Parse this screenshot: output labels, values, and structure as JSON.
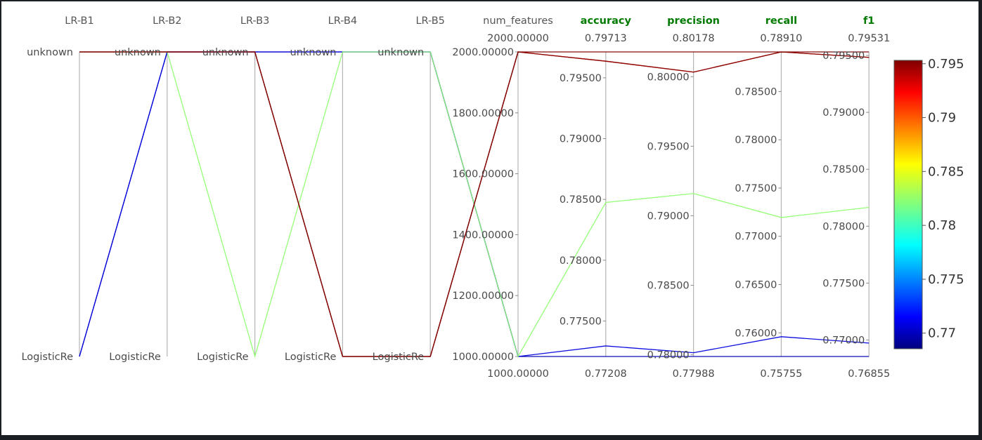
{
  "chart_data": {
    "type": "parallel-coordinates",
    "dimensions": [
      {
        "name": "LR-B1",
        "kind": "categorical",
        "categories": [
          "LogisticRe",
          "unknown"
        ]
      },
      {
        "name": "LR-B2",
        "kind": "categorical",
        "categories": [
          "LogisticRe",
          "unknown"
        ]
      },
      {
        "name": "LR-B3",
        "kind": "categorical",
        "categories": [
          "LogisticRe",
          "unknown"
        ]
      },
      {
        "name": "LR-B4",
        "kind": "categorical",
        "categories": [
          "LogisticRe",
          "unknown"
        ]
      },
      {
        "name": "LR-B5",
        "kind": "categorical",
        "categories": [
          "LogisticRe",
          "unknown"
        ]
      },
      {
        "name": "num_features",
        "kind": "numeric",
        "min": 1000,
        "max": 2000,
        "min_label": "1000.00000",
        "max_label": "2000.00000",
        "ticks": [
          "1000.00000",
          "1200.00000",
          "1400.00000",
          "1600.00000",
          "1800.00000",
          "2000.00000"
        ]
      },
      {
        "name": "accuracy",
        "kind": "numeric",
        "metric": true,
        "min": 0.77208,
        "max": 0.79713,
        "min_label": "0.77208",
        "max_label": "0.79713",
        "ticks": [
          "0.77500",
          "0.78000",
          "0.78500",
          "0.79000",
          "0.79500"
        ]
      },
      {
        "name": "precision",
        "kind": "numeric",
        "metric": true,
        "min": 0.77988,
        "max": 0.80178,
        "min_label": "0.77988",
        "max_label": "0.80178",
        "ticks": [
          "0.78000",
          "0.78500",
          "0.79000",
          "0.79500",
          "0.80000"
        ]
      },
      {
        "name": "recall",
        "kind": "numeric",
        "metric": true,
        "min": 0.75755,
        "max": 0.7891,
        "min_label": "0.75755",
        "max_label": "0.78910",
        "ticks": [
          "0.76000",
          "0.76500",
          "0.77000",
          "0.77500",
          "0.78000",
          "0.78500"
        ]
      },
      {
        "name": "f1",
        "kind": "numeric",
        "metric": true,
        "min": 0.76855,
        "max": 0.79531,
        "min_label": "0.76855",
        "max_label": "0.79531",
        "ticks": [
          "0.77000",
          "0.77500",
          "0.78000",
          "0.78500",
          "0.79000",
          "0.79500"
        ]
      }
    ],
    "rows": [
      {
        "LR-B1": "unknown",
        "LR-B2": "unknown",
        "LR-B3": "unknown",
        "LR-B4": "LogisticRe",
        "LR-B5": "LogisticRe",
        "num_features": 2000,
        "accuracy": 0.79713,
        "precision": 0.80178,
        "recall": 0.7891,
        "f1": 0.79531
      },
      {
        "LR-B1": "unknown",
        "LR-B2": "unknown",
        "LR-B3": "unknown",
        "LR-B4": "LogisticRe",
        "LR-B5": "LogisticRe",
        "num_features": 2000,
        "accuracy": 0.79637,
        "precision": 0.80033,
        "recall": 0.7891,
        "f1": 0.79483
      },
      {
        "LR-B1": "unknown",
        "LR-B2": "unknown",
        "LR-B3": "unknown",
        "LR-B4": "LogisticRe",
        "LR-B5": "LogisticRe",
        "num_features": 2000,
        "accuracy": 0.79637,
        "precision": 0.80033,
        "recall": 0.7891,
        "f1": 0.79483
      },
      {
        "LR-B1": "unknown",
        "LR-B2": "unknown",
        "LR-B3": "LogisticRe",
        "LR-B4": "unknown",
        "LR-B5": "unknown",
        "num_features": 1000,
        "accuracy": 0.78475,
        "precision": 0.7916,
        "recall": 0.77195,
        "f1": 0.78165
      },
      {
        "LR-B1": "LogisticRe",
        "LR-B2": "unknown",
        "LR-B3": "unknown",
        "LR-B4": "unknown",
        "LR-B5": "unknown",
        "num_features": 1000,
        "accuracy": 0.77208,
        "precision": 0.77988,
        "recall": 0.75755,
        "f1": 0.76855
      },
      {
        "LR-B1": "LogisticRe",
        "LR-B2": "unknown",
        "LR-B3": "unknown",
        "LR-B4": "unknown",
        "LR-B5": "unknown",
        "num_features": 1000,
        "accuracy": 0.77295,
        "precision": 0.78015,
        "recall": 0.7596,
        "f1": 0.76973
      }
    ],
    "color": {
      "by": "f1",
      "colormap": "jet",
      "min": 0.76855,
      "max": 0.79531,
      "ticks": [
        "0.77",
        "0.775",
        "0.78",
        "0.785",
        "0.79",
        "0.795"
      ]
    }
  }
}
